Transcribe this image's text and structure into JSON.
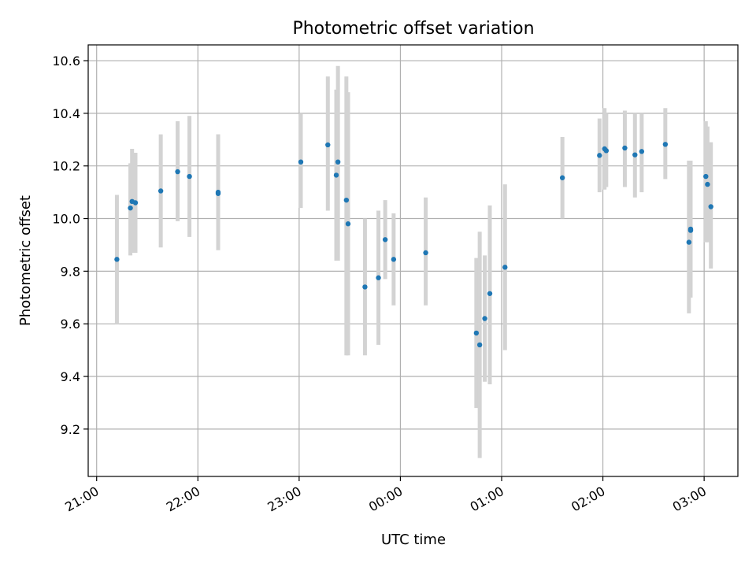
{
  "chart_data": {
    "type": "scatter",
    "title": "Photometric offset variation",
    "xlabel": "UTC time",
    "ylabel": "Photometric offset",
    "x_unit": "UTC",
    "x_ticks": [
      "2023-01-01T21:00",
      "2023-01-01T22:00",
      "2023-01-01T23:00",
      "2023-01-02T00:00",
      "2023-01-02T01:00",
      "2023-01-02T02:00",
      "2023-01-02T03:00"
    ],
    "x_tick_labels": [
      "21:00",
      "22:00",
      "23:00",
      "00:00",
      "01:00",
      "02:00",
      "03:00"
    ],
    "xlim": [
      "2023-01-01T20:55",
      "2023-01-02T03:20"
    ],
    "y_ticks": [
      9.2,
      9.4,
      9.6,
      9.8,
      10.0,
      10.2,
      10.4,
      10.6
    ],
    "y_tick_labels": [
      "9.2",
      "9.4",
      "9.6",
      "9.8",
      "10.0",
      "10.2",
      "10.4",
      "10.6"
    ],
    "ylim": [
      9.02,
      10.66
    ],
    "grid": true,
    "colors": {
      "point": "#1f77b4",
      "errorbar": "#d3d3d3"
    },
    "points": [
      {
        "x": "2023-01-01T21:12",
        "y": 9.845,
        "lo": 9.6,
        "hi": 10.09
      },
      {
        "x": "2023-01-01T21:20",
        "y": 10.04,
        "lo": 9.86,
        "hi": 10.21
      },
      {
        "x": "2023-01-01T21:21",
        "y": 10.065,
        "lo": 9.87,
        "hi": 10.265
      },
      {
        "x": "2023-01-01T21:23",
        "y": 10.06,
        "lo": 9.87,
        "hi": 10.25
      },
      {
        "x": "2023-01-01T21:38",
        "y": 10.105,
        "lo": 9.89,
        "hi": 10.32
      },
      {
        "x": "2023-01-01T21:48",
        "y": 10.178,
        "lo": 9.99,
        "hi": 10.37
      },
      {
        "x": "2023-01-01T21:55",
        "y": 10.16,
        "lo": 9.93,
        "hi": 10.39
      },
      {
        "x": "2023-01-01T22:12",
        "y": 10.095,
        "lo": 9.88,
        "hi": 10.32
      },
      {
        "x": "2023-01-01T22:12",
        "y": 10.1,
        "lo": 9.88,
        "hi": 10.32
      },
      {
        "x": "2023-01-01T23:01",
        "y": 10.215,
        "lo": 10.04,
        "hi": 10.4
      },
      {
        "x": "2023-01-01T23:17",
        "y": 10.28,
        "lo": 10.03,
        "hi": 10.54
      },
      {
        "x": "2023-01-01T23:22",
        "y": 10.165,
        "lo": 9.84,
        "hi": 10.49
      },
      {
        "x": "2023-01-01T23:23",
        "y": 10.215,
        "lo": 9.84,
        "hi": 10.58
      },
      {
        "x": "2023-01-01T23:28",
        "y": 10.07,
        "lo": 9.48,
        "hi": 10.54
      },
      {
        "x": "2023-01-01T23:29",
        "y": 9.98,
        "lo": 9.48,
        "hi": 10.48
      },
      {
        "x": "2023-01-01T23:39",
        "y": 9.74,
        "lo": 9.48,
        "hi": 10.0
      },
      {
        "x": "2023-01-01T23:47",
        "y": 9.775,
        "lo": 9.52,
        "hi": 10.03
      },
      {
        "x": "2023-01-01T23:51",
        "y": 9.92,
        "lo": 9.77,
        "hi": 10.07
      },
      {
        "x": "2023-01-01T23:56",
        "y": 9.845,
        "lo": 9.67,
        "hi": 10.02
      },
      {
        "x": "2023-01-02T00:15",
        "y": 9.87,
        "lo": 9.67,
        "hi": 10.08
      },
      {
        "x": "2023-01-02T00:45",
        "y": 9.565,
        "lo": 9.28,
        "hi": 9.85
      },
      {
        "x": "2023-01-02T00:47",
        "y": 9.52,
        "lo": 9.09,
        "hi": 9.95
      },
      {
        "x": "2023-01-02T00:50",
        "y": 9.62,
        "lo": 9.38,
        "hi": 9.86
      },
      {
        "x": "2023-01-02T00:53",
        "y": 9.715,
        "lo": 9.37,
        "hi": 10.05
      },
      {
        "x": "2023-01-02T01:02",
        "y": 9.815,
        "lo": 9.5,
        "hi": 10.13
      },
      {
        "x": "2023-01-02T01:36",
        "y": 10.155,
        "lo": 10.0,
        "hi": 10.31
      },
      {
        "x": "2023-01-02T01:58",
        "y": 10.24,
        "lo": 10.1,
        "hi": 10.38
      },
      {
        "x": "2023-01-02T02:01",
        "y": 10.265,
        "lo": 10.11,
        "hi": 10.42
      },
      {
        "x": "2023-01-02T02:02",
        "y": 10.258,
        "lo": 10.12,
        "hi": 10.4
      },
      {
        "x": "2023-01-02T02:13",
        "y": 10.268,
        "lo": 10.12,
        "hi": 10.41
      },
      {
        "x": "2023-01-02T02:19",
        "y": 10.242,
        "lo": 10.08,
        "hi": 10.4
      },
      {
        "x": "2023-01-02T02:23",
        "y": 10.255,
        "lo": 10.1,
        "hi": 10.4
      },
      {
        "x": "2023-01-02T02:37",
        "y": 10.282,
        "lo": 10.15,
        "hi": 10.42
      },
      {
        "x": "2023-01-02T02:51",
        "y": 9.91,
        "lo": 9.64,
        "hi": 10.22
      },
      {
        "x": "2023-01-02T02:52",
        "y": 9.955,
        "lo": 9.7,
        "hi": 10.22
      },
      {
        "x": "2023-01-02T02:52",
        "y": 9.96,
        "lo": 9.7,
        "hi": 10.22
      },
      {
        "x": "2023-01-02T03:01",
        "y": 10.16,
        "lo": 9.91,
        "hi": 10.37
      },
      {
        "x": "2023-01-02T03:02",
        "y": 10.13,
        "lo": 9.91,
        "hi": 10.35
      },
      {
        "x": "2023-01-02T03:04",
        "y": 10.045,
        "lo": 9.81,
        "hi": 10.29
      }
    ]
  }
}
